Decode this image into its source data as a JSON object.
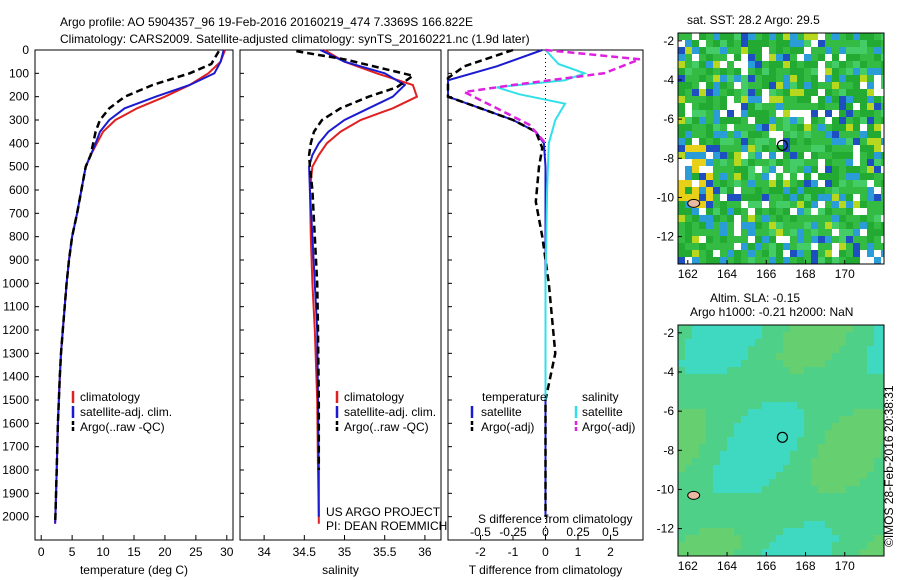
{
  "header": {
    "title_line1": "Argo profile: AO 5904357_96 19-Feb-2016 20160219_474 7.3369S 166.822E",
    "title_line2": "Climatology: CARS2009. Satellite-adjusted climatology: synTS_20160221.nc (1.9d later)"
  },
  "colors": {
    "climatology": "#e02020",
    "satellite": "#1a1ad0",
    "argo": "#000000",
    "sal_satellite": "#30e0e8",
    "sal_argo": "#e020e0"
  },
  "legend_profile": [
    "climatology",
    "satellite-adj. clim.",
    "Argo(..raw -QC)"
  ],
  "legend_diff": {
    "temp_title": "temperature",
    "sal_title": "salinity",
    "items": [
      "satellite",
      "Argo(-adj)"
    ]
  },
  "project": {
    "line1": "US ARGO PROJECT",
    "line2": "PI: DEAN ROEMMICH"
  },
  "stamp": "©IMOS 28-Feb-2016 20:38:31",
  "maps": {
    "sst_title": "sat. SST: 28.2 Argo: 29.5",
    "sla_title_line1": "Altim. SLA: -0.15",
    "sla_title_line2": "Argo h1000: -0.21 h2000: NaN",
    "x_ticks": [
      "162",
      "164",
      "166",
      "168",
      "170"
    ],
    "y_ticks": [
      "-2",
      "-4",
      "-6",
      "-8",
      "-10",
      "-12"
    ]
  },
  "chart_data": [
    {
      "type": "line",
      "xlabel": "temperature (deg C)",
      "ylabel": "",
      "xlim": [
        -1,
        31
      ],
      "ylim": [
        2100,
        0
      ],
      "x_ticks": [
        "0",
        "5",
        "10",
        "15",
        "20",
        "25",
        "30"
      ],
      "y_ticks": [
        "0",
        "100",
        "200",
        "300",
        "400",
        "500",
        "600",
        "700",
        "800",
        "900",
        "1000",
        "1100",
        "1200",
        "1300",
        "1400",
        "1500",
        "1600",
        "1700",
        "1800",
        "1900",
        "2000"
      ],
      "series": [
        {
          "name": "climatology",
          "x": [
            29.7,
            29.0,
            27.0,
            24.0,
            20.0,
            15.5,
            12.0,
            10.0,
            9.0,
            8.0,
            7.2,
            6.5,
            5.8,
            5.0,
            4.5,
            4.1,
            3.8,
            3.5,
            3.2,
            3.0,
            2.7,
            2.5,
            2.3,
            2.25
          ],
          "y": [
            0,
            50,
            100,
            150,
            200,
            250,
            300,
            350,
            400,
            450,
            500,
            600,
            700,
            800,
            900,
            1000,
            1100,
            1200,
            1300,
            1400,
            1600,
            1800,
            2000,
            2030
          ]
        },
        {
          "name": "satellite-adj. clim.",
          "x": [
            29.5,
            29.0,
            28.0,
            24.0,
            18.5,
            13.5,
            11.0,
            9.5,
            8.8,
            8.0,
            7.2,
            6.5,
            5.8,
            5.0,
            4.5,
            4.1,
            3.8,
            3.5,
            3.2,
            3.0,
            2.7,
            2.5,
            2.3,
            2.25
          ],
          "y": [
            0,
            50,
            100,
            150,
            200,
            250,
            300,
            350,
            400,
            450,
            500,
            600,
            700,
            800,
            900,
            1000,
            1100,
            1200,
            1300,
            1400,
            1600,
            1800,
            2000,
            2030
          ]
        },
        {
          "name": "Argo(..raw -QC)",
          "x": [
            28.7,
            27.5,
            24.0,
            18.0,
            13.5,
            11.0,
            9.5,
            8.8,
            8.0,
            7.2,
            6.5,
            5.8,
            5.0,
            4.5,
            4.1,
            3.8,
            3.5,
            3.2,
            3.0,
            2.7,
            2.5,
            2.3,
            2.25
          ],
          "y": [
            5,
            60,
            100,
            150,
            200,
            250,
            300,
            350,
            450,
            500,
            600,
            700,
            800,
            900,
            1000,
            1100,
            1200,
            1300,
            1400,
            1600,
            1800,
            2000,
            2030
          ]
        }
      ]
    },
    {
      "type": "line",
      "xlabel": "salinity",
      "ylabel": "",
      "xlim": [
        33.7,
        36.2
      ],
      "ylim": [
        2100,
        0
      ],
      "x_ticks": [
        "34",
        "34.5",
        "35",
        "35.5",
        "36"
      ],
      "series": [
        {
          "name": "climatology",
          "x": [
            34.75,
            35.0,
            35.4,
            35.85,
            35.9,
            35.6,
            35.2,
            34.95,
            34.78,
            34.68,
            34.6,
            34.57,
            34.58,
            34.6,
            34.63,
            34.66,
            34.67,
            34.68,
            34.68
          ],
          "y": [
            0,
            50,
            100,
            150,
            200,
            250,
            300,
            350,
            400,
            450,
            500,
            600,
            800,
            1000,
            1200,
            1500,
            1800,
            2000,
            2030
          ]
        },
        {
          "name": "satellite-adj. clim.",
          "x": [
            34.7,
            35.0,
            35.5,
            35.75,
            35.6,
            35.3,
            35.0,
            34.8,
            34.68,
            34.6,
            34.56,
            34.57,
            34.6,
            34.63,
            34.66,
            34.67,
            34.68,
            34.68
          ],
          "y": [
            0,
            50,
            100,
            150,
            200,
            250,
            300,
            350,
            400,
            450,
            500,
            600,
            800,
            1000,
            1200,
            1500,
            1800,
            2000
          ]
        },
        {
          "name": "Argo(..raw -QC)",
          "x": [
            34.4,
            35.0,
            35.85,
            35.65,
            35.3,
            34.95,
            34.72,
            34.62,
            34.58,
            34.56,
            34.57,
            34.6,
            34.63,
            34.66,
            34.67,
            34.68,
            34.68
          ],
          "y": [
            5,
            40,
            110,
            160,
            200,
            250,
            300,
            350,
            400,
            450,
            500,
            600,
            800,
            1000,
            1200,
            1500,
            1800
          ]
        }
      ]
    },
    {
      "type": "line",
      "xlabel": "T difference from climatology",
      "xlabel_top": "S difference from climatology",
      "ylabel": "",
      "xlim": [
        -3,
        3
      ],
      "ylim": [
        2100,
        0
      ],
      "x_ticks": [
        "-2",
        "-1",
        "0",
        "1",
        "2"
      ],
      "top_ticks": [
        "-0.5",
        "-0.25",
        "0",
        "0.25",
        "0.5"
      ],
      "series": [
        {
          "name": "temperature satellite",
          "x": [
            -0.1,
            -1.5,
            -3.0,
            -3.0,
            -2.0,
            -1.0,
            -0.3,
            -0.05,
            0.0,
            0.0,
            0.0,
            0.0
          ],
          "y": [
            0,
            70,
            130,
            200,
            250,
            300,
            350,
            400,
            500,
            1000,
            1500,
            2000
          ]
        },
        {
          "name": "temperature Argo(-adj)",
          "x": [
            -1.0,
            -2.5,
            -3.0,
            -3.0,
            -2.0,
            -1.0,
            -0.3,
            -0.1,
            -0.2,
            -0.3,
            -0.1,
            0.1,
            0.3,
            0.0,
            0.0
          ],
          "y": [
            0,
            70,
            120,
            200,
            250,
            300,
            350,
            420,
            500,
            650,
            800,
            1000,
            1300,
            1500,
            2000
          ]
        },
        {
          "name": "salinity satellite",
          "x": [
            0.0,
            0.4,
            1.2,
            0.6,
            -1.5,
            -0.8,
            0.6,
            0.3,
            0.1,
            0.05,
            0.0,
            0.0
          ],
          "y": [
            0,
            60,
            100,
            130,
            160,
            190,
            230,
            300,
            400,
            600,
            1000,
            1500
          ]
        },
        {
          "name": "salinity Argo(-adj)",
          "x": [
            0.0,
            2.9,
            1.8,
            -1.0,
            -2.5,
            -1.5,
            -0.5,
            0.0
          ],
          "y": [
            0,
            40,
            100,
            150,
            180,
            250,
            320,
            400
          ]
        }
      ]
    }
  ]
}
